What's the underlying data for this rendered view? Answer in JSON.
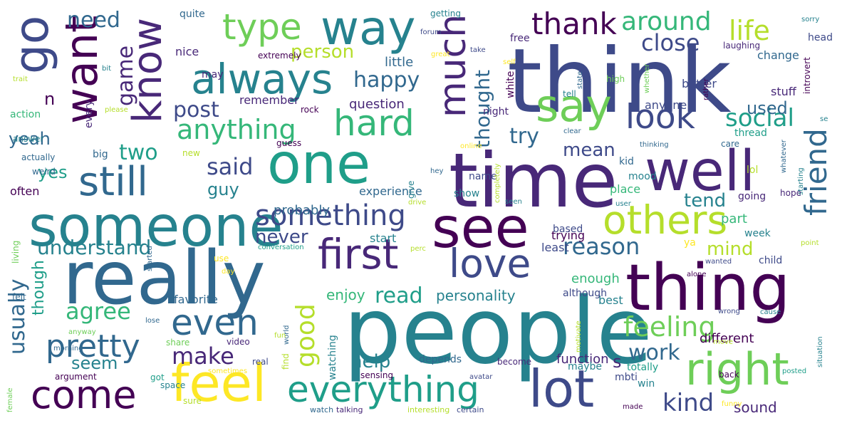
{
  "wordcloud": {
    "palette": [
      "#440154",
      "#482878",
      "#3e4a89",
      "#31688e",
      "#26828e",
      "#1f9e89",
      "#35b779",
      "#6ece58",
      "#b5de2b",
      "#fde725"
    ],
    "words": [
      {
        "text": "think",
        "color": "#3e4a89",
        "rotate": false
      },
      {
        "text": "people",
        "color": "#26828e",
        "rotate": false
      },
      {
        "text": "really",
        "color": "#31688e",
        "rotate": false
      },
      {
        "text": "time",
        "color": "#482878",
        "rotate": false
      },
      {
        "text": "thing",
        "color": "#440154",
        "rotate": false
      },
      {
        "text": "one",
        "color": "#1f9e89",
        "rotate": false
      },
      {
        "text": "well",
        "color": "#482878",
        "rotate": false
      },
      {
        "text": "someone",
        "color": "#26828e",
        "rotate": false
      },
      {
        "text": "see",
        "color": "#440154",
        "rotate": false
      },
      {
        "text": "lot",
        "color": "#3e4a89",
        "rotate": false
      },
      {
        "text": "feel",
        "color": "#fde725",
        "rotate": false
      },
      {
        "text": "way",
        "color": "#26828e",
        "rotate": false
      },
      {
        "text": "always",
        "color": "#26828e",
        "rotate": false
      },
      {
        "text": "go",
        "color": "#3e4a89",
        "rotate": true
      },
      {
        "text": "want",
        "color": "#440154",
        "rotate": true
      },
      {
        "text": "know",
        "color": "#482878",
        "rotate": true
      },
      {
        "text": "much",
        "color": "#482878",
        "rotate": true
      },
      {
        "text": "say",
        "color": "#6ece58",
        "rotate": false
      },
      {
        "text": "right",
        "color": "#6ece58",
        "rotate": false
      },
      {
        "text": "first",
        "color": "#482878",
        "rotate": false
      },
      {
        "text": "love",
        "color": "#3e4a89",
        "rotate": false
      },
      {
        "text": "others",
        "color": "#b5de2b",
        "rotate": false
      },
      {
        "text": "everything",
        "color": "#1f9e89",
        "rotate": false
      },
      {
        "text": "come",
        "color": "#440154",
        "rotate": false
      },
      {
        "text": "still",
        "color": "#31688e",
        "rotate": false
      },
      {
        "text": "hard",
        "color": "#35b779",
        "rotate": false
      },
      {
        "text": "type",
        "color": "#6ece58",
        "rotate": false
      },
      {
        "text": "even",
        "color": "#31688e",
        "rotate": false
      },
      {
        "text": "something",
        "color": "#3e4a89",
        "rotate": false
      },
      {
        "text": "look",
        "color": "#3e4a89",
        "rotate": false
      },
      {
        "text": "friend",
        "color": "#31688e",
        "rotate": true
      },
      {
        "text": "pretty",
        "color": "#31688e",
        "rotate": false
      },
      {
        "text": "anything",
        "color": "#35b779",
        "rotate": false
      },
      {
        "text": "feeling",
        "color": "#6ece58",
        "rotate": false
      },
      {
        "text": "good",
        "color": "#b5de2b",
        "rotate": true
      },
      {
        "text": "thank",
        "color": "#440154",
        "rotate": false
      },
      {
        "text": "around",
        "color": "#35b779",
        "rotate": false
      },
      {
        "text": "life",
        "color": "#b5de2b",
        "rotate": false
      },
      {
        "text": "close",
        "color": "#3e4a89",
        "rotate": false
      },
      {
        "text": "happy",
        "color": "#31688e",
        "rotate": false
      },
      {
        "text": "social",
        "color": "#1f9e89",
        "rotate": false
      },
      {
        "text": "make",
        "color": "#482878",
        "rotate": false
      },
      {
        "text": "kind",
        "color": "#3e4a89",
        "rotate": false
      },
      {
        "text": "agree",
        "color": "#35b779",
        "rotate": false
      },
      {
        "text": "reason",
        "color": "#31688e",
        "rotate": false
      },
      {
        "text": "usually",
        "color": "#31688e",
        "rotate": true
      },
      {
        "text": "understand",
        "color": "#26828e",
        "rotate": false
      },
      {
        "text": "read",
        "color": "#1f9e89",
        "rotate": false
      },
      {
        "text": "try",
        "color": "#31688e",
        "rotate": false
      },
      {
        "text": "post",
        "color": "#3e4a89",
        "rotate": false
      },
      {
        "text": "said",
        "color": "#3e4a89",
        "rotate": false
      },
      {
        "text": "two",
        "color": "#1f9e89",
        "rotate": false
      },
      {
        "text": "work",
        "color": "#31688e",
        "rotate": false
      },
      {
        "text": "game",
        "color": "#482878",
        "rotate": true
      },
      {
        "text": "thought",
        "color": "#31688e",
        "rotate": true
      },
      {
        "text": "person",
        "color": "#b5de2b",
        "rotate": false
      },
      {
        "text": "need",
        "color": "#31688e",
        "rotate": false
      },
      {
        "text": "mean",
        "color": "#3e4a89",
        "rotate": false
      },
      {
        "text": "tend",
        "color": "#26828e",
        "rotate": false
      },
      {
        "text": "mind",
        "color": "#b5de2b",
        "rotate": false
      },
      {
        "text": "seem",
        "color": "#26828e",
        "rotate": false
      },
      {
        "text": "help",
        "color": "#26828e",
        "rotate": false
      },
      {
        "text": "used",
        "color": "#31688e",
        "rotate": false
      },
      {
        "text": "yeah",
        "color": "#31688e",
        "rotate": false
      },
      {
        "text": "never",
        "color": "#3e4a89",
        "rotate": false
      },
      {
        "text": "guy",
        "color": "#26828e",
        "rotate": false
      },
      {
        "text": "yes",
        "color": "#1f9e89",
        "rotate": false
      },
      {
        "text": "n",
        "color": "#440154",
        "rotate": false
      },
      {
        "text": "s",
        "color": "#482878",
        "rotate": false
      },
      {
        "text": "though",
        "color": "#1f9e89",
        "rotate": true
      },
      {
        "text": "personality",
        "color": "#26828e",
        "rotate": false
      },
      {
        "text": "sound",
        "color": "#482878",
        "rotate": false
      },
      {
        "text": "different",
        "color": "#440154",
        "rotate": false
      },
      {
        "text": "enjoy",
        "color": "#35b779",
        "rotate": false
      },
      {
        "text": "enough",
        "color": "#35b779",
        "rotate": false
      },
      {
        "text": "question",
        "color": "#482878",
        "rotate": false
      },
      {
        "text": "little",
        "color": "#31688e",
        "rotate": false
      },
      {
        "text": "probably",
        "color": "#31688e",
        "rotate": false
      },
      {
        "text": "function",
        "color": "#482878",
        "rotate": false
      },
      {
        "text": "part",
        "color": "#35b779",
        "rotate": false
      },
      {
        "text": "place",
        "color": "#35b779",
        "rotate": false
      },
      {
        "text": "often",
        "color": "#440154",
        "rotate": false
      },
      {
        "text": "experience",
        "color": "#31688e",
        "rotate": false
      },
      {
        "text": "remember",
        "color": "#482878",
        "rotate": false
      },
      {
        "text": "change",
        "color": "#31688e",
        "rotate": false
      },
      {
        "text": "stuff",
        "color": "#482878",
        "rotate": false
      },
      {
        "text": "better",
        "color": "#3e4a89",
        "rotate": false
      },
      {
        "text": "anyone",
        "color": "#3e4a89",
        "rotate": false
      },
      {
        "text": "least",
        "color": "#3e4a89",
        "rotate": false
      },
      {
        "text": "best",
        "color": "#26828e",
        "rotate": false
      },
      {
        "text": "trying",
        "color": "#440154",
        "rotate": false
      },
      {
        "text": "start",
        "color": "#26828e",
        "rotate": false
      },
      {
        "text": "favorite",
        "color": "#31688e",
        "rotate": false
      },
      {
        "text": "nice",
        "color": "#482878",
        "rotate": false
      },
      {
        "text": "every",
        "color": "#482878",
        "rotate": true
      },
      {
        "text": "white",
        "color": "#440154",
        "rotate": true
      },
      {
        "text": "night",
        "color": "#482878",
        "rotate": false
      },
      {
        "text": "kid",
        "color": "#31688e",
        "rotate": false
      },
      {
        "text": "mbti",
        "color": "#3e4a89",
        "rotate": false
      },
      {
        "text": "win",
        "color": "#26828e",
        "rotate": false
      },
      {
        "text": "maybe",
        "color": "#26828e",
        "rotate": false
      },
      {
        "text": "totally",
        "color": "#1f9e89",
        "rotate": false
      },
      {
        "text": "depends",
        "color": "#31688e",
        "rotate": false
      },
      {
        "text": "watching",
        "color": "#26828e",
        "rotate": true
      },
      {
        "text": "although",
        "color": "#3e4a89",
        "rotate": false
      },
      {
        "text": "child",
        "color": "#3e4a89",
        "rotate": false
      },
      {
        "text": "going",
        "color": "#482878",
        "rotate": false
      },
      {
        "text": "week",
        "color": "#26828e",
        "rotate": false
      },
      {
        "text": "based",
        "color": "#3e4a89",
        "rotate": false
      },
      {
        "text": "lol",
        "color": "#b5de2b",
        "rotate": false
      },
      {
        "text": "thread",
        "color": "#1f9e89",
        "rotate": false
      },
      {
        "text": "head",
        "color": "#3e4a89",
        "rotate": false
      },
      {
        "text": "show",
        "color": "#26828e",
        "rotate": false
      },
      {
        "text": "name",
        "color": "#3e4a89",
        "rotate": false
      },
      {
        "text": "big",
        "color": "#31688e",
        "rotate": false
      },
      {
        "text": "action",
        "color": "#35b779",
        "rotate": false
      },
      {
        "text": "may",
        "color": "#482878",
        "rotate": false
      },
      {
        "text": "quite",
        "color": "#31688e",
        "rotate": false
      },
      {
        "text": "free",
        "color": "#482878",
        "rotate": false
      },
      {
        "text": "mood",
        "color": "#26828e",
        "rotate": false
      },
      {
        "text": "living",
        "color": "#6ece58",
        "rotate": true
      },
      {
        "text": "ya",
        "color": "#fde725",
        "rotate": false
      },
      {
        "text": "use",
        "color": "#fde725",
        "rotate": false
      },
      {
        "text": "find",
        "color": "#b5de2b",
        "rotate": true
      },
      {
        "text": "become",
        "color": "#482878",
        "rotate": false
      },
      {
        "text": "back",
        "color": "#440154",
        "rotate": false
      },
      {
        "text": "felt",
        "color": "#31688e",
        "rotate": false
      },
      {
        "text": "video",
        "color": "#482878",
        "rotate": false
      },
      {
        "text": "rock",
        "color": "#440154",
        "rotate": false
      },
      {
        "text": "getting",
        "color": "#26828e",
        "rotate": false
      },
      {
        "text": "extremely",
        "color": "#440154",
        "rotate": false
      },
      {
        "text": "laughing",
        "color": "#482878",
        "rotate": false
      },
      {
        "text": "introvert",
        "color": "#440154",
        "rotate": true
      },
      {
        "text": "tell",
        "color": "#26828e",
        "rotate": false
      },
      {
        "text": "high",
        "color": "#6ece58",
        "rotate": false
      },
      {
        "text": "care",
        "color": "#31688e",
        "rotate": false
      },
      {
        "text": "give",
        "color": "#26828e",
        "rotate": true
      },
      {
        "text": "hope",
        "color": "#482878",
        "rotate": false
      },
      {
        "text": "weird",
        "color": "#31688e",
        "rotate": false
      },
      {
        "text": "actually",
        "color": "#31688e",
        "rotate": false
      },
      {
        "text": "answer",
        "color": "#26828e",
        "rotate": false
      },
      {
        "text": "guess",
        "color": "#440154",
        "rotate": false
      },
      {
        "text": "new",
        "color": "#b5de2b",
        "rotate": false
      },
      {
        "text": "argument",
        "color": "#440154",
        "rotate": false
      },
      {
        "text": "share",
        "color": "#6ece58",
        "rotate": false
      },
      {
        "text": "got",
        "color": "#1f9e89",
        "rotate": false
      },
      {
        "text": "space",
        "color": "#26828e",
        "rotate": false
      },
      {
        "text": "sure",
        "color": "#b5de2b",
        "rotate": false
      },
      {
        "text": "real",
        "color": "#3e4a89",
        "rotate": false
      },
      {
        "text": "sensing",
        "color": "#440154",
        "rotate": false
      },
      {
        "text": "sometimes",
        "color": "#fde725",
        "rotate": false
      },
      {
        "text": "watch",
        "color": "#31688e",
        "rotate": false
      },
      {
        "text": "talking",
        "color": "#482878",
        "rotate": false
      },
      {
        "text": "interesting",
        "color": "#b5de2b",
        "rotate": false
      },
      {
        "text": "certain",
        "color": "#3e4a89",
        "rotate": false
      },
      {
        "text": "made",
        "color": "#440154",
        "rotate": false
      },
      {
        "text": "funny",
        "color": "#fde725",
        "rotate": false
      },
      {
        "text": "posted",
        "color": "#1f9e89",
        "rotate": false
      },
      {
        "text": "situation",
        "color": "#26828e",
        "rotate": true
      },
      {
        "text": "cause",
        "color": "#26828e",
        "rotate": false
      },
      {
        "text": "wrong",
        "color": "#3e4a89",
        "rotate": false
      },
      {
        "text": "move",
        "color": "#b5de2b",
        "rotate": false
      },
      {
        "text": "alone",
        "color": "#440154",
        "rotate": false
      },
      {
        "text": "wanted",
        "color": "#3e4a89",
        "rotate": false
      },
      {
        "text": "point",
        "color": "#b5de2b",
        "rotate": false
      },
      {
        "text": "conversation",
        "color": "#1f9e89",
        "rotate": false
      },
      {
        "text": "perc",
        "color": "#b5de2b",
        "rotate": false
      },
      {
        "text": "drive",
        "color": "#b5de2b",
        "rotate": false
      },
      {
        "text": "started",
        "color": "#31688e",
        "rotate": true
      },
      {
        "text": "day",
        "color": "#fde725",
        "rotate": false
      },
      {
        "text": "seen",
        "color": "#26828e",
        "rotate": false
      },
      {
        "text": "user",
        "color": "#26828e",
        "rotate": false
      },
      {
        "text": "online",
        "color": "#fde725",
        "rotate": false
      },
      {
        "text": "hey",
        "color": "#31688e",
        "rotate": false
      },
      {
        "text": "completely",
        "color": "#b5de2b",
        "rotate": true
      },
      {
        "text": "motivate",
        "color": "#b5de2b",
        "rotate": true
      },
      {
        "text": "thinking",
        "color": "#31688e",
        "rotate": false
      },
      {
        "text": "whatever",
        "color": "#31688e",
        "rotate": true
      },
      {
        "text": "starting",
        "color": "#26828e",
        "rotate": true
      },
      {
        "text": "clear",
        "color": "#31688e",
        "rotate": false
      },
      {
        "text": "state",
        "color": "#31688e",
        "rotate": true
      },
      {
        "text": "rather",
        "color": "#440154",
        "rotate": true
      },
      {
        "text": "whether",
        "color": "#6ece58",
        "rotate": true
      },
      {
        "text": "sorry",
        "color": "#26828e",
        "rotate": false
      },
      {
        "text": "se",
        "color": "#26828e",
        "rotate": false
      },
      {
        "text": "self",
        "color": "#fde725",
        "rotate": false
      },
      {
        "text": "great",
        "color": "#fde725",
        "rotate": false
      },
      {
        "text": "take",
        "color": "#3e4a89",
        "rotate": false
      },
      {
        "text": "forum",
        "color": "#3e4a89",
        "rotate": false
      },
      {
        "text": "bit",
        "color": "#26828e",
        "rotate": false
      },
      {
        "text": "trait",
        "color": "#b5de2b",
        "rotate": false
      },
      {
        "text": "please",
        "color": "#b5de2b",
        "rotate": false
      },
      {
        "text": "world",
        "color": "#31688e",
        "rotate": true
      },
      {
        "text": "fun",
        "color": "#b5de2b",
        "rotate": false
      },
      {
        "text": "morning",
        "color": "#31688e",
        "rotate": false
      },
      {
        "text": "anyway",
        "color": "#6ece58",
        "rotate": false
      },
      {
        "text": "lose",
        "color": "#31688e",
        "rotate": false
      },
      {
        "text": "female",
        "color": "#6ece58",
        "rotate": true
      },
      {
        "text": "avatar",
        "color": "#3e4a89",
        "rotate": false
      }
    ]
  }
}
